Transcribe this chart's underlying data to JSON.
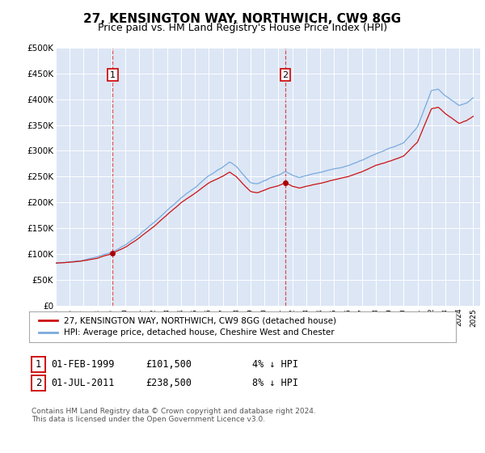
{
  "title": "27, KENSINGTON WAY, NORTHWICH, CW9 8GG",
  "subtitle": "Price paid vs. HM Land Registry's House Price Index (HPI)",
  "ylim": [
    0,
    500000
  ],
  "yticks": [
    0,
    50000,
    100000,
    150000,
    200000,
    250000,
    300000,
    350000,
    400000,
    450000,
    500000
  ],
  "ytick_labels": [
    "£0",
    "£50K",
    "£100K",
    "£150K",
    "£200K",
    "£250K",
    "£300K",
    "£350K",
    "£400K",
    "£450K",
    "£500K"
  ],
  "xlim_start": 1995,
  "xlim_end": 2025.5,
  "background_color": "#dce6f5",
  "hpi_color": "#7aaadd",
  "price_color": "#cc1111",
  "marker_color": "#aa0000",
  "sale1_date": 1999.08,
  "sale1_price": 101500,
  "sale2_date": 2011.5,
  "sale2_price": 238500,
  "legend_label1": "27, KENSINGTON WAY, NORTHWICH, CW9 8GG (detached house)",
  "legend_label2": "HPI: Average price, detached house, Cheshire West and Chester",
  "info1_date": "01-FEB-1999",
  "info1_price": "£101,500",
  "info1_hpi": "4% ↓ HPI",
  "info2_date": "01-JUL-2011",
  "info2_price": "£238,500",
  "info2_hpi": "8% ↓ HPI",
  "footer": "Contains HM Land Registry data © Crown copyright and database right 2024.\nThis data is licensed under the Open Government Licence v3.0."
}
